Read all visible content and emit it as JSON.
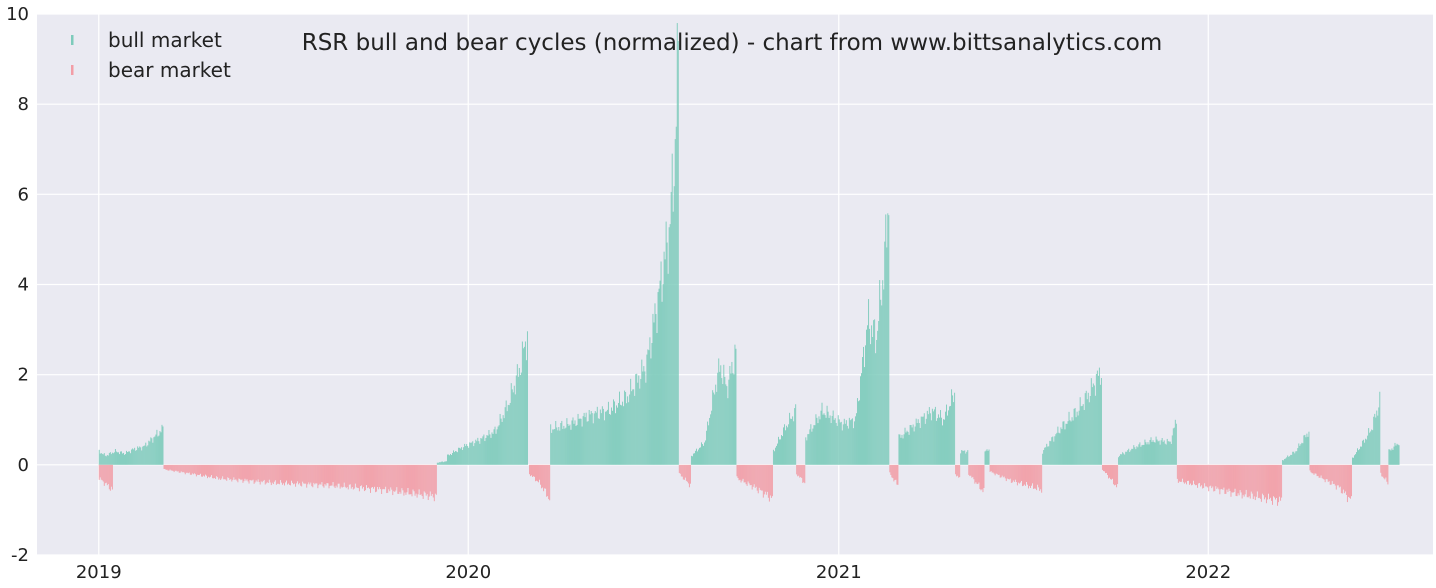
{
  "chart_data": {
    "type": "bar",
    "title": "RSR bull and bear cycles (normalized)  - chart from www.bittsanalytics.com",
    "xlabel": "",
    "ylabel": "",
    "ylim": [
      -2,
      10
    ],
    "xlim": [
      "2018-11-01",
      "2022-08-11"
    ],
    "yticks": [
      -2,
      0,
      2,
      4,
      6,
      8,
      10
    ],
    "xticks": [
      {
        "date": "2019-01-01",
        "label": "2019"
      },
      {
        "date": "2020-01-01",
        "label": "2020"
      },
      {
        "date": "2021-01-01",
        "label": "2021"
      },
      {
        "date": "2022-01-01",
        "label": "2022"
      }
    ],
    "grid": true,
    "legend_position": "top-left",
    "colors": {
      "bull": "#7dcbbb",
      "bear": "#f29da6",
      "background": "#eaeaf2",
      "grid": "#ffffff"
    },
    "series": [
      {
        "name": "bull market",
        "key": "bull",
        "segments": [
          {
            "start": "2019-01-01",
            "end": "2019-03-05",
            "points": [
              [
                0,
                0.3
              ],
              [
                0.1,
                0.2
              ],
              [
                0.25,
                0.3
              ],
              [
                0.4,
                0.25
              ],
              [
                0.55,
                0.35
              ],
              [
                0.7,
                0.4
              ],
              [
                0.85,
                0.6
              ],
              [
                1,
                0.8
              ]
            ]
          },
          {
            "start": "2019-12-01",
            "end": "2019-12-10",
            "points": [
              [
                0,
                0.05
              ],
              [
                1,
                0.08
              ]
            ]
          },
          {
            "start": "2019-12-11",
            "end": "2020-02-28",
            "points": [
              [
                0,
                0.2
              ],
              [
                0.2,
                0.4
              ],
              [
                0.4,
                0.55
              ],
              [
                0.6,
                0.75
              ],
              [
                0.75,
                1.3
              ],
              [
                0.9,
                2.1
              ],
              [
                1,
                2.9
              ]
            ]
          },
          {
            "start": "2020-03-22",
            "end": "2020-07-26",
            "points": [
              [
                0,
                0.8
              ],
              [
                0.15,
                0.9
              ],
              [
                0.3,
                1.1
              ],
              [
                0.45,
                1.2
              ],
              [
                0.6,
                1.5
              ],
              [
                0.75,
                2.2
              ],
              [
                0.85,
                3.8
              ],
              [
                0.93,
                5.2
              ],
              [
                0.97,
                6.7
              ],
              [
                1,
                9.1
              ]
            ]
          },
          {
            "start": "2020-08-08",
            "end": "2020-09-21",
            "points": [
              [
                0,
                0.2
              ],
              [
                0.3,
                0.5
              ],
              [
                0.55,
                1.8
              ],
              [
                0.65,
                2.2
              ],
              [
                0.8,
                1.7
              ],
              [
                1,
                2.5
              ]
            ]
          },
          {
            "start": "2020-10-28",
            "end": "2020-11-19",
            "points": [
              [
                0,
                0.3
              ],
              [
                0.5,
                0.8
              ],
              [
                1,
                1.2
              ]
            ]
          },
          {
            "start": "2020-11-29",
            "end": "2021-02-19",
            "points": [
              [
                0,
                0.6
              ],
              [
                0.2,
                1.2
              ],
              [
                0.45,
                0.9
              ],
              [
                0.6,
                1.0
              ],
              [
                0.75,
                3.2
              ],
              [
                0.85,
                2.8
              ],
              [
                0.95,
                4.5
              ],
              [
                1,
                6.0
              ]
            ]
          },
          {
            "start": "2021-03-01",
            "end": "2021-04-25",
            "points": [
              [
                0,
                0.6
              ],
              [
                0.3,
                0.9
              ],
              [
                0.6,
                1.2
              ],
              [
                0.8,
                1.0
              ],
              [
                1,
                1.6
              ]
            ]
          },
          {
            "start": "2021-05-01",
            "end": "2021-05-08",
            "points": [
              [
                0,
                0.3
              ],
              [
                1,
                0.3
              ]
            ]
          },
          {
            "start": "2021-05-25",
            "end": "2021-05-29",
            "points": [
              [
                0,
                0.35
              ],
              [
                1,
                0.3
              ]
            ]
          },
          {
            "start": "2021-07-21",
            "end": "2021-09-17",
            "points": [
              [
                0,
                0.3
              ],
              [
                0.3,
                0.8
              ],
              [
                0.6,
                1.2
              ],
              [
                0.8,
                1.6
              ],
              [
                1,
                2.1
              ]
            ]
          },
          {
            "start": "2021-10-04",
            "end": "2021-11-30",
            "points": [
              [
                0,
                0.2
              ],
              [
                0.3,
                0.4
              ],
              [
                0.6,
                0.55
              ],
              [
                0.9,
                0.5
              ],
              [
                1,
                1.0
              ]
            ]
          },
          {
            "start": "2022-03-15",
            "end": "2022-04-10",
            "points": [
              [
                0,
                0.1
              ],
              [
                0.5,
                0.3
              ],
              [
                1,
                0.75
              ]
            ]
          },
          {
            "start": "2022-05-23",
            "end": "2022-06-19",
            "points": [
              [
                0,
                0.15
              ],
              [
                0.4,
                0.5
              ],
              [
                0.7,
                0.8
              ],
              [
                1,
                1.4
              ]
            ]
          },
          {
            "start": "2022-06-28",
            "end": "2022-07-08",
            "points": [
              [
                0,
                0.3
              ],
              [
                1,
                0.5
              ]
            ]
          }
        ]
      },
      {
        "name": "bear market",
        "key": "bear",
        "segments": [
          {
            "start": "2019-01-01",
            "end": "2019-01-14",
            "points": [
              [
                0,
                -0.3
              ],
              [
                1,
                -0.55
              ]
            ]
          },
          {
            "start": "2019-03-06",
            "end": "2019-11-30",
            "points": [
              [
                0,
                -0.1
              ],
              [
                0.2,
                -0.3
              ],
              [
                0.4,
                -0.4
              ],
              [
                0.6,
                -0.45
              ],
              [
                0.8,
                -0.55
              ],
              [
                1,
                -0.7
              ]
            ]
          },
          {
            "start": "2020-03-01",
            "end": "2020-03-21",
            "points": [
              [
                0,
                -0.2
              ],
              [
                0.5,
                -0.4
              ],
              [
                1,
                -0.75
              ]
            ]
          },
          {
            "start": "2020-07-27",
            "end": "2020-08-07",
            "points": [
              [
                0,
                -0.2
              ],
              [
                1,
                -0.45
              ]
            ]
          },
          {
            "start": "2020-09-22",
            "end": "2020-10-27",
            "points": [
              [
                0,
                -0.3
              ],
              [
                0.5,
                -0.5
              ],
              [
                1,
                -0.75
              ]
            ]
          },
          {
            "start": "2020-11-20",
            "end": "2020-11-28",
            "points": [
              [
                0,
                -0.2
              ],
              [
                1,
                -0.4
              ]
            ]
          },
          {
            "start": "2021-02-20",
            "end": "2021-02-28",
            "points": [
              [
                0,
                -0.2
              ],
              [
                1,
                -0.45
              ]
            ]
          },
          {
            "start": "2021-04-26",
            "end": "2021-04-30",
            "points": [
              [
                0,
                -0.2
              ],
              [
                1,
                -0.3
              ]
            ]
          },
          {
            "start": "2021-05-09",
            "end": "2021-05-24",
            "points": [
              [
                0,
                -0.2
              ],
              [
                1,
                -0.6
              ]
            ]
          },
          {
            "start": "2021-05-30",
            "end": "2021-07-20",
            "points": [
              [
                0,
                -0.15
              ],
              [
                0.4,
                -0.35
              ],
              [
                0.7,
                -0.45
              ],
              [
                1,
                -0.55
              ]
            ]
          },
          {
            "start": "2021-09-18",
            "end": "2021-10-03",
            "points": [
              [
                0,
                -0.1
              ],
              [
                0.5,
                -0.3
              ],
              [
                1,
                -0.5
              ]
            ]
          },
          {
            "start": "2021-12-01",
            "end": "2022-03-14",
            "points": [
              [
                0,
                -0.35
              ],
              [
                0.3,
                -0.5
              ],
              [
                0.6,
                -0.65
              ],
              [
                1,
                -0.8
              ]
            ]
          },
          {
            "start": "2022-04-11",
            "end": "2022-05-22",
            "points": [
              [
                0,
                -0.15
              ],
              [
                0.4,
                -0.35
              ],
              [
                0.7,
                -0.5
              ],
              [
                1,
                -0.8
              ]
            ]
          },
          {
            "start": "2022-06-20",
            "end": "2022-06-27",
            "points": [
              [
                0,
                -0.2
              ],
              [
                1,
                -0.4
              ]
            ]
          }
        ]
      }
    ]
  }
}
